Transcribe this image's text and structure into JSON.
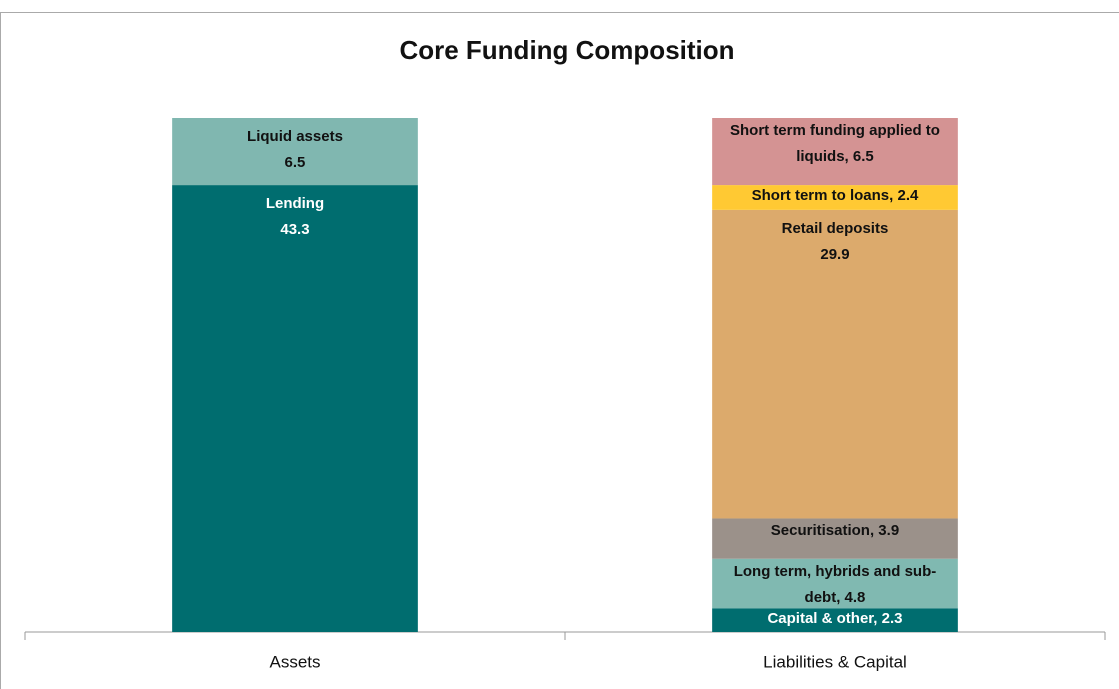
{
  "chart_data": {
    "type": "stacked_bar",
    "title": "Core Funding Composition",
    "categories": [
      "Assets",
      "Liabilities & Capital"
    ],
    "ylim": [
      0,
      49.8
    ],
    "series": [
      {
        "name": "Lending",
        "color": "#006d6f",
        "values": [
          43.3,
          null
        ]
      },
      {
        "name": "Liquid assets",
        "color": "#80b7b0",
        "values": [
          6.5,
          null
        ]
      },
      {
        "color": "#006d6f",
        "values": [
          null,
          2.3
        ],
        "value_labels": [
          null,
          "Capital & other, 2.3"
        ]
      },
      {
        "color": "#80b9b1",
        "values": [
          null,
          4.8
        ],
        "value_labels": [
          null,
          "Long term, hybrids and sub-debt, 4.8"
        ]
      },
      {
        "color": "#9b918a",
        "values": [
          null,
          3.9
        ],
        "value_labels": [
          null,
          "Securitisation, 3.9"
        ]
      },
      {
        "name": "Retail deposits",
        "color": "#dcaa6c",
        "values": [
          null,
          29.9
        ]
      },
      {
        "color": "#ffc933",
        "values": [
          null,
          2.4
        ],
        "value_labels": [
          null,
          "Short term to loans, 2.4"
        ]
      },
      {
        "color": "#d49393",
        "values": [
          null,
          6.5
        ],
        "value_labels": [
          null,
          "Short term funding applied to liquids, 6.5"
        ]
      }
    ]
  }
}
